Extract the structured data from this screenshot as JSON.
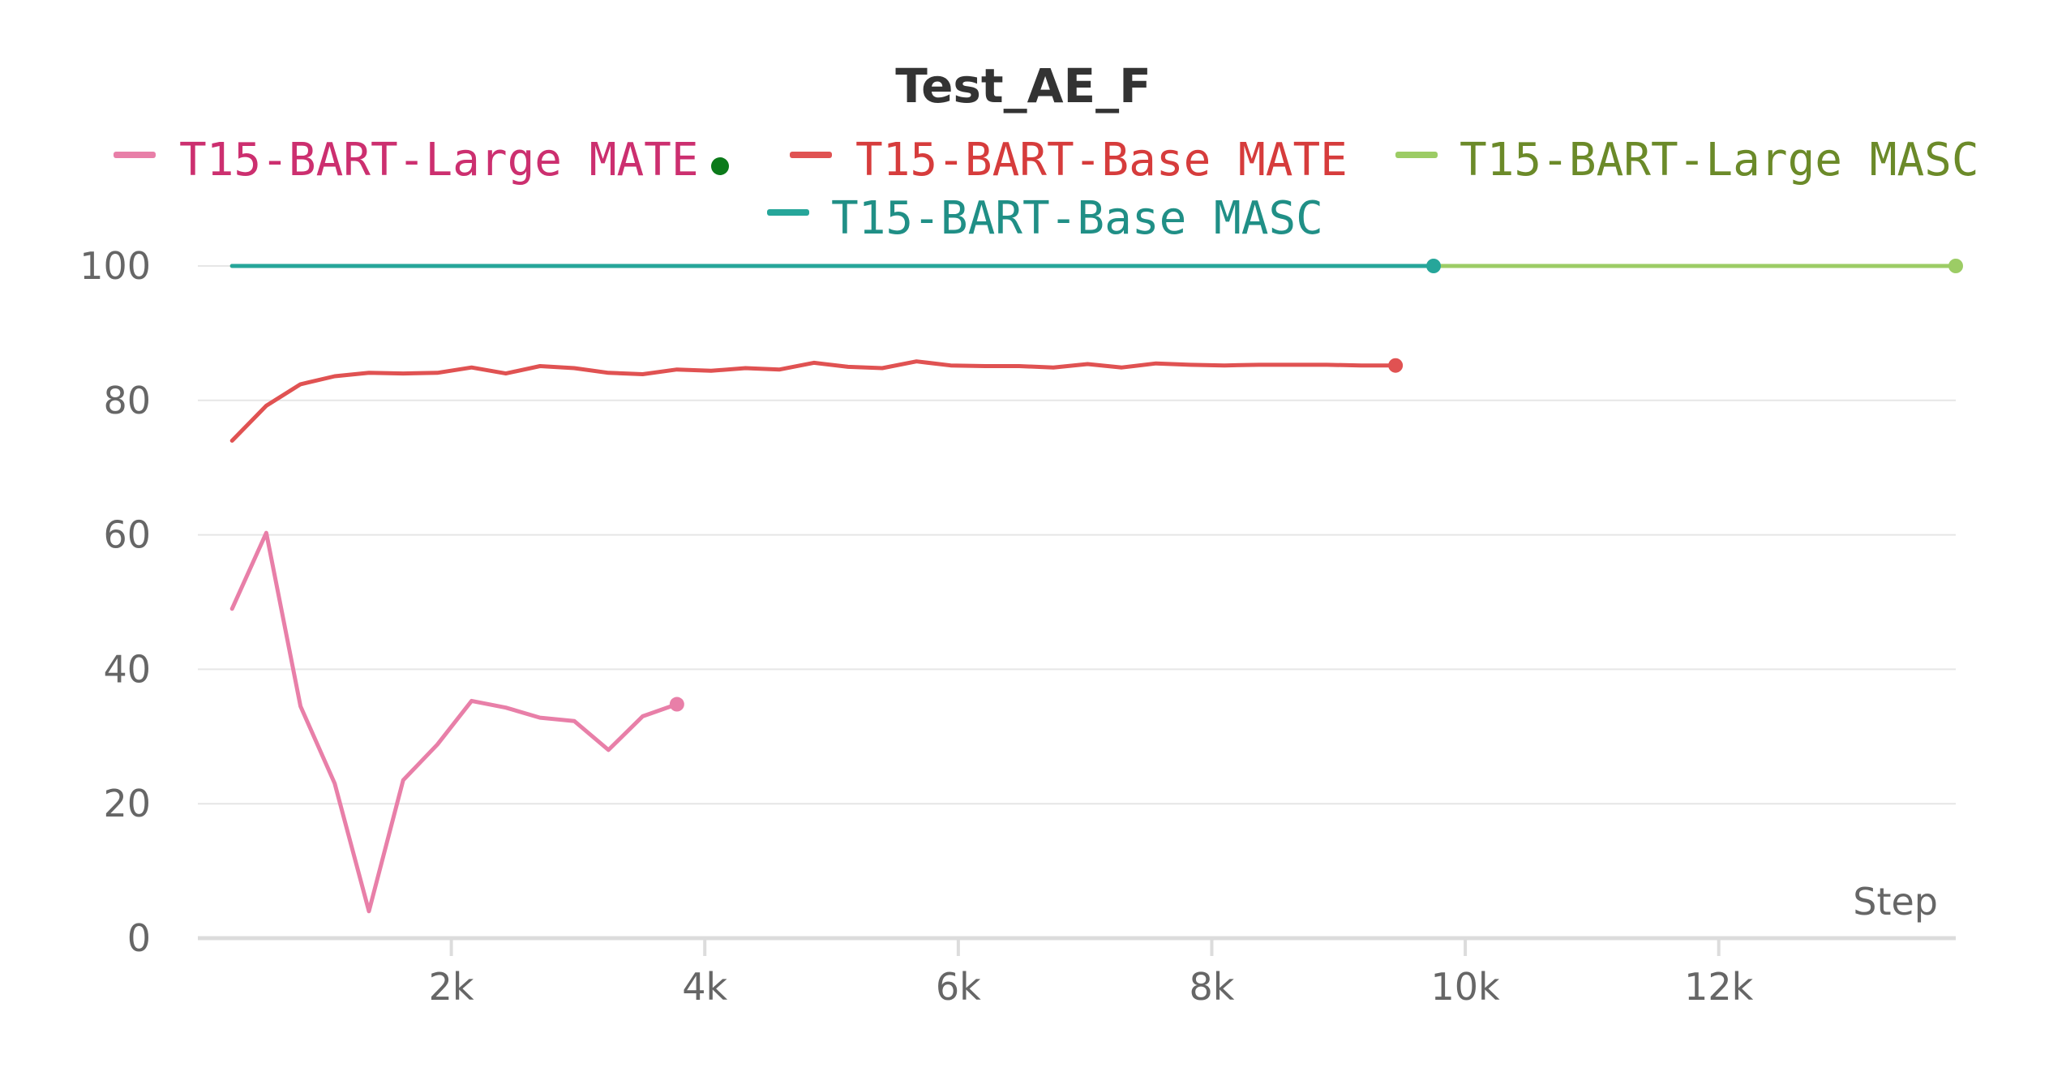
{
  "chart_data": {
    "type": "line",
    "title": "Test_AE_F",
    "xlabel": "Step",
    "ylabel": "",
    "xlim": [
      0,
      13800
    ],
    "ylim": [
      0,
      100
    ],
    "x_ticks": [
      2000,
      4000,
      6000,
      8000,
      10000,
      12000
    ],
    "x_tick_labels": [
      "2k",
      "4k",
      "6k",
      "8k",
      "10k",
      "12k"
    ],
    "y_ticks": [
      0,
      20,
      40,
      60,
      80,
      100
    ],
    "y_tick_labels": [
      "0",
      "20",
      "40",
      "60",
      "80",
      "100"
    ],
    "grid": "horizontal",
    "legend_placement": "top",
    "series": [
      {
        "name": "T15-BART-Large MATE",
        "color": "#e87fa8",
        "text_color": "#cc2f6f",
        "x": [
          270,
          540,
          810,
          1080,
          1350,
          1620,
          1890,
          2160,
          2430,
          2700,
          2970,
          3240,
          3510,
          3780
        ],
        "y": [
          49,
          60.3,
          34.5,
          23,
          4,
          23.5,
          28.8,
          35.3,
          34.3,
          32.8,
          32.3,
          28,
          33,
          34.8
        ]
      },
      {
        "name": "T15-BART-Base MATE",
        "color": "#e05252",
        "text_color": "#d63c3c",
        "x": [
          270,
          540,
          810,
          1080,
          1350,
          1620,
          1890,
          2160,
          2430,
          2700,
          2970,
          3240,
          3510,
          3780,
          4050,
          4320,
          4590,
          4860,
          5130,
          5400,
          5670,
          5940,
          6210,
          6480,
          6750,
          7020,
          7290,
          7560,
          7830,
          8100,
          8370,
          8640,
          8910,
          9180,
          9450
        ],
        "y": [
          74,
          79.2,
          82.4,
          83.6,
          84.1,
          84,
          84.1,
          84.9,
          84,
          85.1,
          84.8,
          84.1,
          83.9,
          84.6,
          84.4,
          84.8,
          84.6,
          85.6,
          85,
          84.8,
          85.8,
          85.2,
          85.1,
          85.1,
          84.9,
          85.4,
          84.9,
          85.5,
          85.3,
          85.2,
          85.3,
          85.3,
          85.3,
          85.2,
          85.2
        ]
      },
      {
        "name": "T15-BART-Large MASC",
        "color": "#9ccc65",
        "text_color": "#6b8a29",
        "x": [
          270,
          13870
        ],
        "y": [
          100,
          100
        ]
      },
      {
        "name": "T15-BART-Base MASC",
        "color": "#26a69a",
        "text_color": "#208f86",
        "x": [
          270,
          9750
        ],
        "y": [
          100,
          100
        ]
      }
    ],
    "legend_extra_dot_color": "#0b7a1a"
  }
}
